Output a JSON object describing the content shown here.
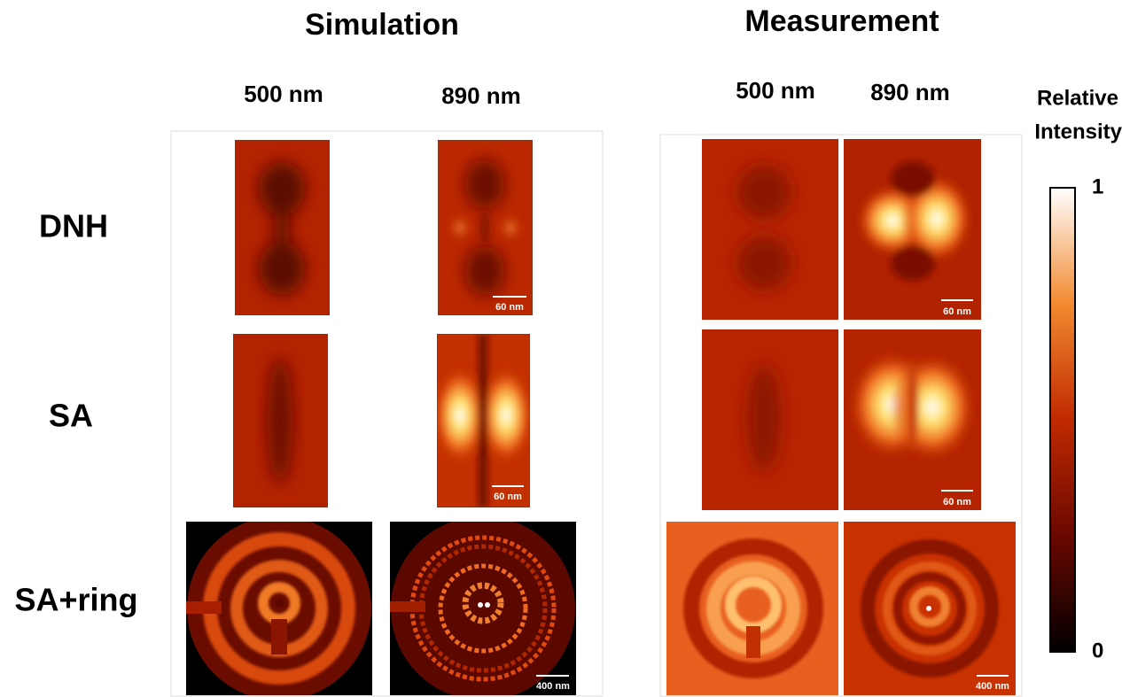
{
  "titles": {
    "simulation": "Simulation",
    "measurement": "Measurement"
  },
  "columns": {
    "simulation": [
      "500 nm",
      "890 nm"
    ],
    "measurement": [
      "500 nm",
      "890 nm"
    ]
  },
  "rows": [
    "DNH",
    "SA",
    "SA+ring"
  ],
  "scale_bars": [
    "60 nm",
    "60 nm",
    "400 nm",
    "60 nm",
    "60 nm",
    "400 nm"
  ],
  "colorbar": {
    "label": [
      "Relative",
      "Intensity"
    ],
    "ticks": [
      1,
      0
    ]
  }
}
